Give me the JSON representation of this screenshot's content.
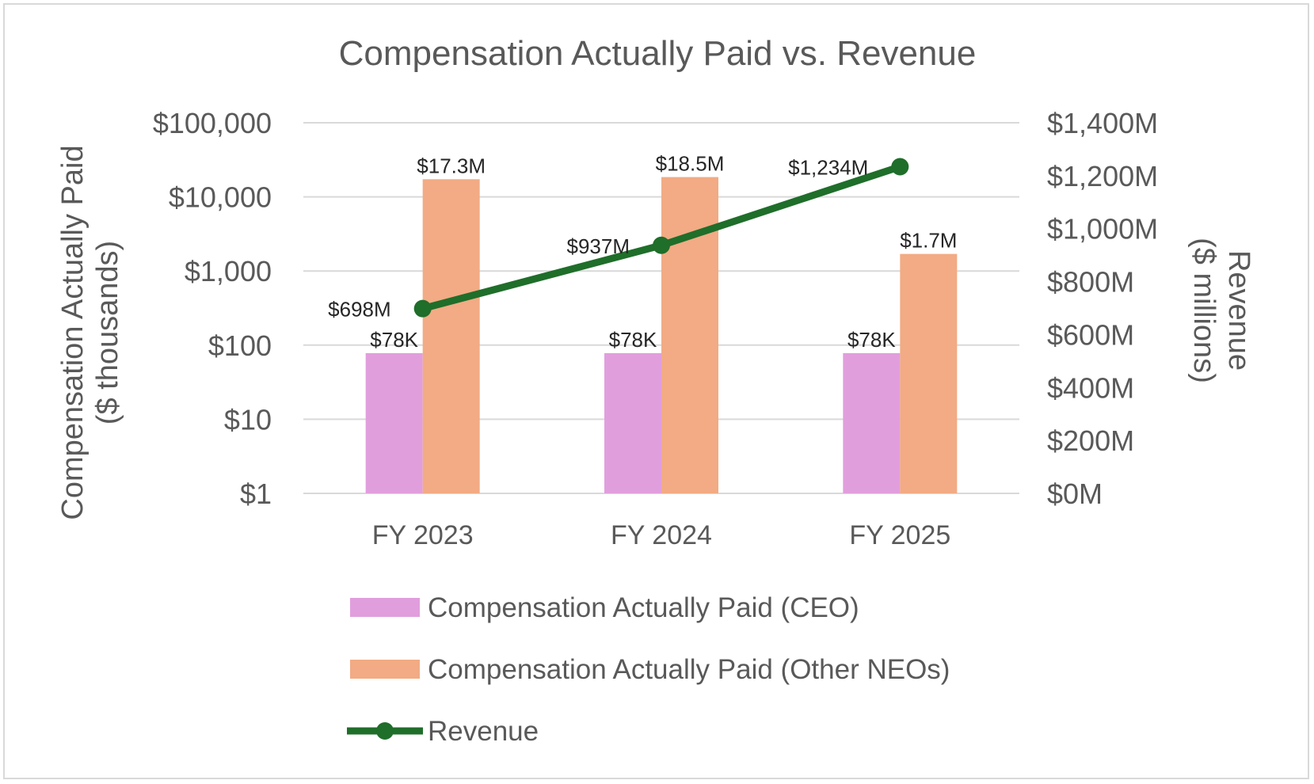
{
  "chart_data": {
    "type": "bar",
    "title": "Compensation Actually Paid vs. Revenue",
    "categories": [
      "FY 2023",
      "FY 2024",
      "FY 2025"
    ],
    "y_left": {
      "label_line1": "Compensation Actually Paid",
      "label_line2": "($ thousands)",
      "scale": "log",
      "ylim": [
        1,
        100000
      ],
      "ticks": [
        "$1",
        "$10",
        "$100",
        "$1,000",
        "$10,000",
        "$100,000"
      ]
    },
    "y_right": {
      "label_line1": "Revenue",
      "label_line2": "($ millions)",
      "scale": "linear",
      "ylim": [
        0,
        1400
      ],
      "ticks": [
        "$0M",
        "$200M",
        "$400M",
        "$600M",
        "$800M",
        "$1,000M",
        "$1,200M",
        "$1,400M"
      ]
    },
    "series": [
      {
        "name": "Compensation Actually Paid (CEO)",
        "type": "bar",
        "axis": "left",
        "color": "#e19edd",
        "values": [
          78,
          78,
          78
        ],
        "labels": [
          "$78K",
          "$78K",
          "$78K"
        ]
      },
      {
        "name": "Compensation Actually Paid (Other NEOs)",
        "type": "bar",
        "axis": "left",
        "color": "#f2ab84",
        "values": [
          17300,
          18500,
          1700
        ],
        "labels": [
          "$17.3M",
          "$18.5M",
          "$1.7M"
        ]
      },
      {
        "name": "Revenue",
        "type": "line",
        "axis": "right",
        "color": "#1f6e2a",
        "values": [
          698,
          937,
          1234
        ],
        "labels": [
          "$698M",
          "$937M",
          "$1,234M"
        ]
      }
    ],
    "grid": true,
    "legend_position": "bottom"
  }
}
